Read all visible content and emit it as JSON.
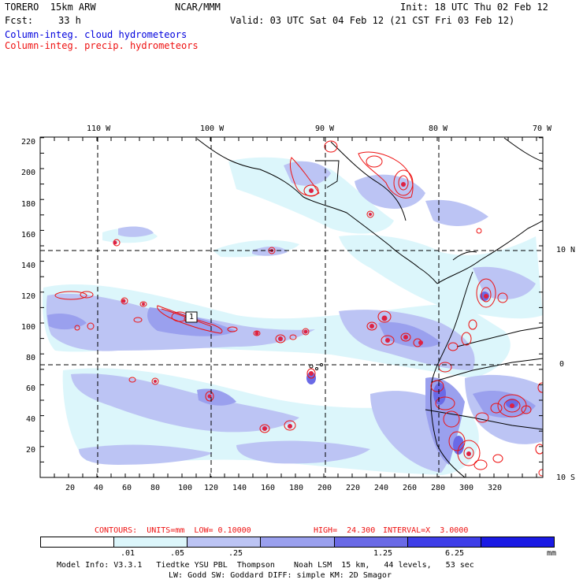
{
  "header": {
    "model": "TORERO  15km ARW",
    "center": "NCAR/MMM",
    "init": "Init: 18 UTC Thu 02 Feb 12",
    "fcst_label": "Fcst:",
    "fcst_hours": "33 h",
    "valid": "Valid: 03 UTC Sat 04 Feb 12 (21 CST Fri 03 Feb 12)",
    "field1": "Column-integ. cloud hydrometeors",
    "field2": "Column-integ. precip. hydrometeors",
    "field1_color": "#0000dd",
    "field2_color": "#ee1111"
  },
  "map": {
    "lon_labels": [
      "110 W",
      "100 W",
      "90 W",
      "80 W",
      "70 W"
    ],
    "lat_labels": [
      "10 N",
      "0",
      "10 S"
    ],
    "y_ticks": [
      "220",
      "200",
      "180",
      "160",
      "140",
      "120",
      "100",
      "80",
      "60",
      "40",
      "20"
    ],
    "x_ticks": [
      "20",
      "40",
      "60",
      "80",
      "100",
      "120",
      "140",
      "160",
      "180",
      "200",
      "220",
      "240",
      "260",
      "280",
      "300",
      "320"
    ],
    "max_marker": "1"
  },
  "contours_info": {
    "units": "CONTOURS:  UNITS=mm  LOW= 0.10000",
    "high": "HIGH=  24.300",
    "interval": "INTERVAL=X  3.0000",
    "color": "#dd1111"
  },
  "legend": {
    "levels": [
      ".01",
      ".05",
      ".25",
      "1.25",
      "6.25"
    ],
    "unit": "mm",
    "colors": [
      "#ffffff",
      "#dcf6fb",
      "#bcc4f4",
      "#9aa0ee",
      "#6a6ae6",
      "#3e3ee8",
      "#1a1ae4"
    ]
  },
  "footer": {
    "line1": "Model Info: V3.3.1   Tiedtke YSU PBL  Thompson    Noah LSM  15 km,   44 levels,   53 sec",
    "line2": "LW: Godd SW: Goddard DIFF: simple KM: 2D Smagor"
  }
}
